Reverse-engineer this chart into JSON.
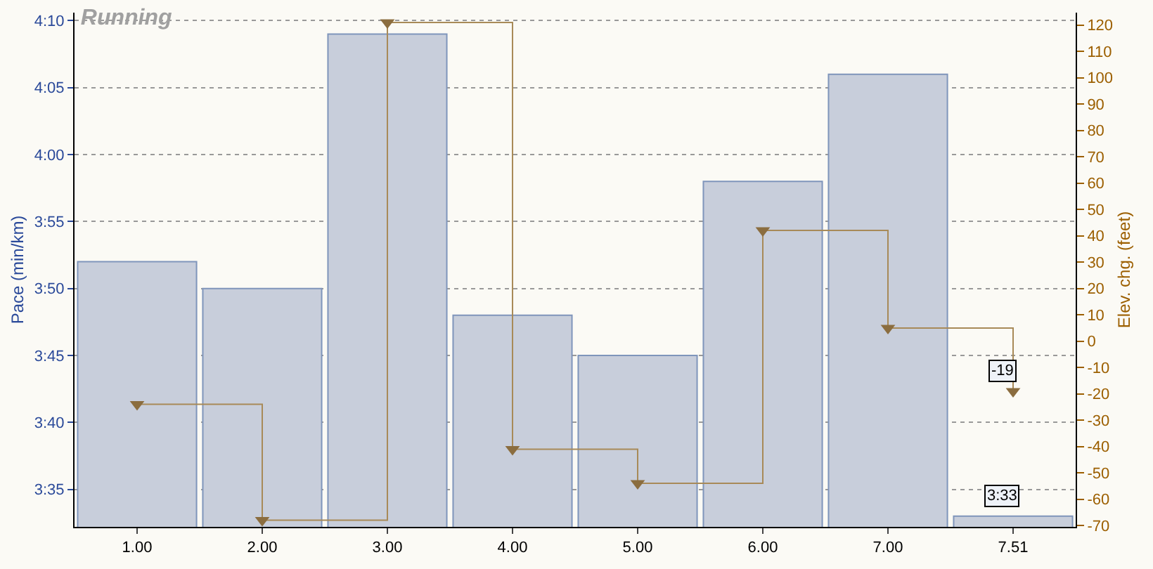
{
  "chart_data": {
    "type": "bar",
    "title": "Running",
    "ylabel": "Pace (min/km)",
    "y2label": "Elev. chg. (feet)",
    "categories": [
      "1.00",
      "2.00",
      "3.00",
      "4.00",
      "5.00",
      "6.00",
      "7.00",
      "7.51"
    ],
    "series": [
      {
        "color": "#c8cedb",
        "values": [
          232,
          230,
          249,
          228,
          225,
          238,
          246,
          213
        ],
        "value_labels": [
          null,
          null,
          null,
          null,
          null,
          null,
          null,
          "3:33"
        ]
      },
      {
        "type": "step",
        "axis": "y2",
        "color": "#a88a58",
        "marker": "triangle",
        "values": [
          -24,
          -68,
          121,
          -41,
          -54,
          42,
          5,
          -19
        ],
        "value_labels": [
          null,
          null,
          null,
          null,
          null,
          null,
          null,
          "-19"
        ]
      }
    ],
    "ylim": [
      212.2,
      250.6
    ],
    "yticks": [
      {
        "value": 215,
        "label": "3:35"
      },
      {
        "value": 220,
        "label": "3:40"
      },
      {
        "value": 225,
        "label": "3:45"
      },
      {
        "value": 230,
        "label": "3:50"
      },
      {
        "value": 235,
        "label": "3:55"
      },
      {
        "value": 240,
        "label": "4:00"
      },
      {
        "value": 245,
        "label": "4:05"
      },
      {
        "value": 250,
        "label": "4:10"
      }
    ],
    "y2lim": [
      -70.5,
      124.7
    ],
    "y2ticks": [
      -70,
      -60,
      -50,
      -40,
      -30,
      -20,
      -10,
      0,
      10,
      20,
      30,
      40,
      50,
      60,
      70,
      80,
      90,
      100,
      110,
      120
    ],
    "grid": "y"
  }
}
